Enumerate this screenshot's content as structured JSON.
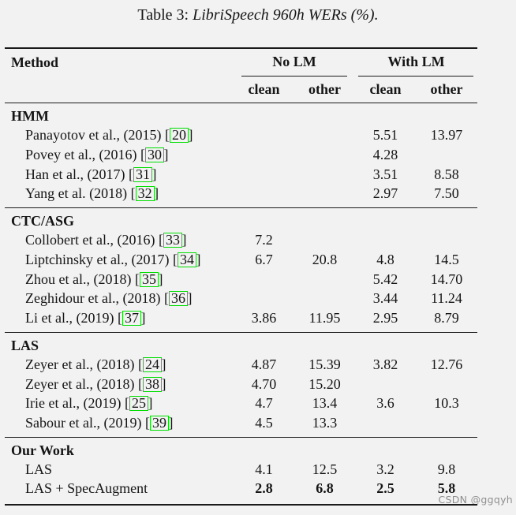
{
  "caption": {
    "label": "Table 3: ",
    "italic_text": "LibriSpeech 960h WERs (%)."
  },
  "watermark": "CSDN @ggqyh",
  "colors": {
    "background": "#f2f2f2",
    "text": "#151515",
    "citation_box": "#00dd00",
    "watermark_text": "#8f8f8f"
  },
  "table": {
    "cite_open": "[",
    "cite_close": "]",
    "header": {
      "method": "Method",
      "group1": "No LM",
      "group2": "With LM",
      "subcols": [
        "clean",
        "other",
        "clean",
        "other"
      ]
    },
    "sections": [
      {
        "name": "HMM",
        "rows": [
          {
            "method": "Panayotov et al., (2015)",
            "cite": "20",
            "values": [
              "",
              "",
              "5.51",
              "13.97"
            ],
            "bold": false
          },
          {
            "method": "Povey et al., (2016)",
            "cite": "30",
            "values": [
              "",
              "",
              "4.28",
              ""
            ],
            "bold": false
          },
          {
            "method": "Han et al., (2017)",
            "cite": "31",
            "values": [
              "",
              "",
              "3.51",
              "8.58"
            ],
            "bold": false
          },
          {
            "method": "Yang et al. (2018)",
            "cite": "32",
            "values": [
              "",
              "",
              "2.97",
              "7.50"
            ],
            "bold": false
          }
        ]
      },
      {
        "name": "CTC/ASG",
        "rows": [
          {
            "method": "Collobert et al., (2016)",
            "cite": "33",
            "values": [
              "7.2",
              "",
              "",
              ""
            ],
            "bold": false
          },
          {
            "method": "Liptchinsky et al., (2017)",
            "cite": "34",
            "values": [
              "6.7",
              "20.8",
              "4.8",
              "14.5"
            ],
            "bold": false
          },
          {
            "method": "Zhou et al., (2018)",
            "cite": "35",
            "values": [
              "",
              "",
              "5.42",
              "14.70"
            ],
            "bold": false
          },
          {
            "method": "Zeghidour et al., (2018)",
            "cite": "36",
            "values": [
              "",
              "",
              "3.44",
              "11.24"
            ],
            "bold": false
          },
          {
            "method": "Li et al., (2019)",
            "cite": "37",
            "values": [
              "3.86",
              "11.95",
              "2.95",
              "8.79"
            ],
            "bold": false
          }
        ]
      },
      {
        "name": "LAS",
        "rows": [
          {
            "method": "Zeyer et al., (2018)",
            "cite": "24",
            "values": [
              "4.87",
              "15.39",
              "3.82",
              "12.76"
            ],
            "bold": false
          },
          {
            "method": "Zeyer et al., (2018)",
            "cite": "38",
            "values": [
              "4.70",
              "15.20",
              "",
              ""
            ],
            "bold": false
          },
          {
            "method": "Irie et al., (2019)",
            "cite": "25",
            "values": [
              "4.7",
              "13.4",
              "3.6",
              "10.3"
            ],
            "bold": false
          },
          {
            "method": "Sabour et al., (2019)",
            "cite": "39",
            "values": [
              "4.5",
              "13.3",
              "",
              ""
            ],
            "bold": false
          }
        ]
      },
      {
        "name": "Our Work",
        "rows": [
          {
            "method": "LAS",
            "cite": null,
            "values": [
              "4.1",
              "12.5",
              "3.2",
              "9.8"
            ],
            "bold": false
          },
          {
            "method": "LAS + SpecAugment",
            "cite": null,
            "values": [
              "2.8",
              "6.8",
              "2.5",
              "5.8"
            ],
            "bold": true
          }
        ]
      }
    ]
  }
}
